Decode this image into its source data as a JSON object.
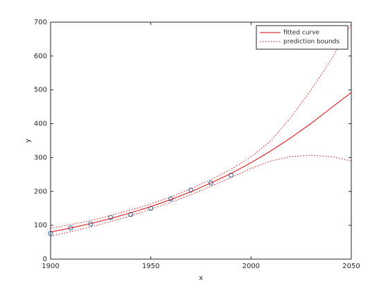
{
  "chart_data": {
    "type": "line",
    "xlabel": "x",
    "ylabel": "y",
    "xlim": [
      1900,
      2050
    ],
    "ylim": [
      0,
      700
    ],
    "xticks": [
      1900,
      1950,
      2000,
      2050
    ],
    "yticks": [
      0,
      100,
      200,
      300,
      400,
      500,
      600,
      700
    ],
    "legend": "top-right",
    "points": {
      "color": "#0072bd",
      "x": [
        1900,
        1910,
        1920,
        1930,
        1940,
        1950,
        1960,
        1970,
        1980,
        1990
      ],
      "values": [
        76,
        92,
        104,
        123,
        132,
        150,
        178,
        204,
        225,
        248
      ]
    },
    "x": [
      1900,
      1910,
      1920,
      1930,
      1940,
      1950,
      1960,
      1970,
      1980,
      1990,
      2000,
      2010,
      2020,
      2030,
      2040,
      2050
    ],
    "series": [
      {
        "name": "fitted curve",
        "color": "#e00000",
        "dash": "none",
        "values": [
          80,
          92,
          105,
          120,
          137,
          155,
          176,
          199,
          225,
          253,
          285,
          320,
          359,
          401,
          447,
          492
        ]
      },
      {
        "name": "prediction bounds",
        "color": "#e00000",
        "dash": "1.5 2.5",
        "values": [
          91,
          102,
          114,
          129,
          145,
          163,
          184,
          208,
          235,
          265,
          302,
          350,
          420,
          500,
          590,
          695
        ],
        "lower": [
          68,
          81,
          95,
          111,
          128,
          147,
          168,
          190,
          215,
          241,
          268,
          290,
          303,
          307,
          303,
          290
        ]
      }
    ]
  }
}
